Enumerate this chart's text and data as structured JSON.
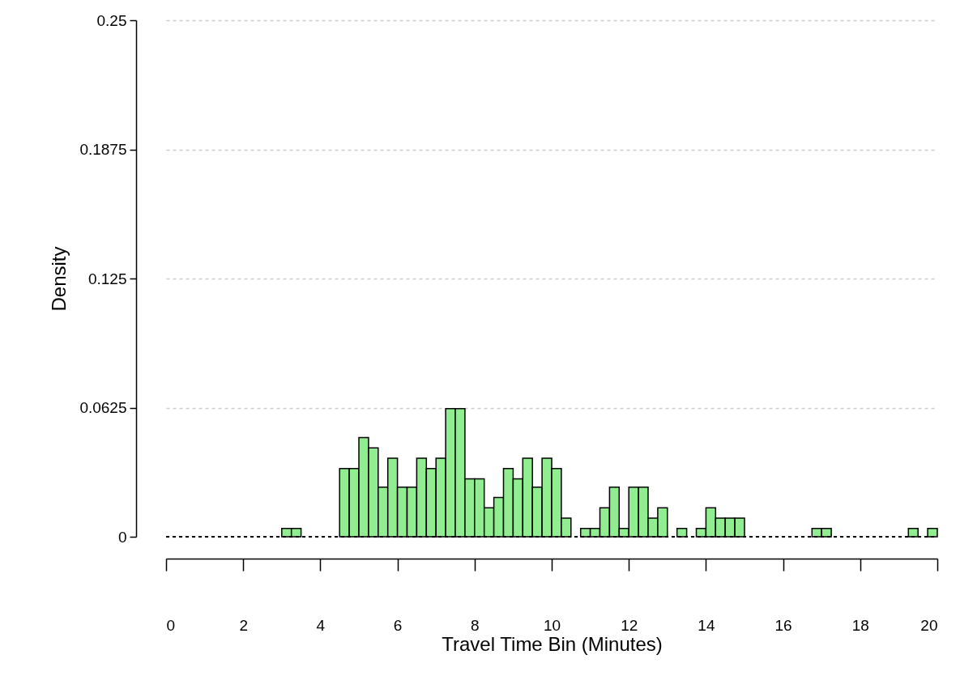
{
  "chart_data": {
    "type": "histogram",
    "xlabel": "Travel Time Bin (Minutes)",
    "ylabel": "Density",
    "bins": [
      0,
      0.25,
      0.5,
      0.75,
      1,
      1.25,
      1.5,
      1.75,
      2,
      2.25,
      2.5,
      2.75,
      3,
      3.25,
      3.5,
      3.75,
      4,
      4.25,
      4.5,
      4.75,
      5,
      5.25,
      5.5,
      5.75,
      6,
      6.25,
      6.5,
      6.75,
      7,
      7.25,
      7.5,
      7.75,
      8,
      8.25,
      8.5,
      8.75,
      9,
      9.25,
      9.5,
      9.75,
      10,
      10.25,
      10.5,
      10.75,
      11,
      11.25,
      11.5,
      11.75,
      12,
      12.25,
      12.5,
      12.75,
      13,
      13.25,
      13.5,
      13.75,
      14,
      14.25,
      14.5,
      14.75,
      15,
      15.25,
      15.5,
      15.75,
      16,
      16.25,
      16.5,
      16.75,
      17,
      17.25,
      17.5,
      17.75,
      18,
      18.25,
      18.5,
      18.75,
      19,
      19.25,
      19.5,
      19.75,
      20
    ],
    "values": [
      0,
      0,
      0,
      0,
      0,
      0,
      0,
      0,
      0,
      0,
      0,
      0,
      0.004,
      0.004,
      0,
      0,
      0,
      0,
      0.033,
      0.033,
      0.048,
      0.043,
      0.024,
      0.038,
      0.024,
      0.024,
      0.038,
      0.033,
      0.038,
      0.062,
      0.062,
      0.028,
      0.028,
      0.014,
      0.019,
      0.033,
      0.028,
      0.038,
      0.024,
      0.038,
      0.033,
      0.009,
      0,
      0.004,
      0.004,
      0.014,
      0.024,
      0.004,
      0.024,
      0.024,
      0.009,
      0.014,
      0,
      0.004,
      0,
      0.004,
      0.014,
      0.009,
      0.009,
      0.009,
      0,
      0,
      0,
      0,
      0,
      0,
      0,
      0.004,
      0.004,
      0,
      0,
      0,
      0,
      0,
      0,
      0,
      0,
      0.004,
      0,
      0.004
    ],
    "color": "#90ee90",
    "xlim": [
      0,
      20
    ],
    "xticks": [
      0,
      2,
      4,
      6,
      8,
      10,
      12,
      14,
      16,
      18,
      20
    ],
    "ylim": [
      0,
      0.25
    ],
    "yticks": [
      0,
      0.0625,
      0.125,
      0.1875,
      0.25
    ],
    "grid": "y",
    "ref_lines": [
      {
        "axis": "y",
        "value": 0,
        "line_style": "dashed",
        "color": "#000000"
      }
    ]
  }
}
